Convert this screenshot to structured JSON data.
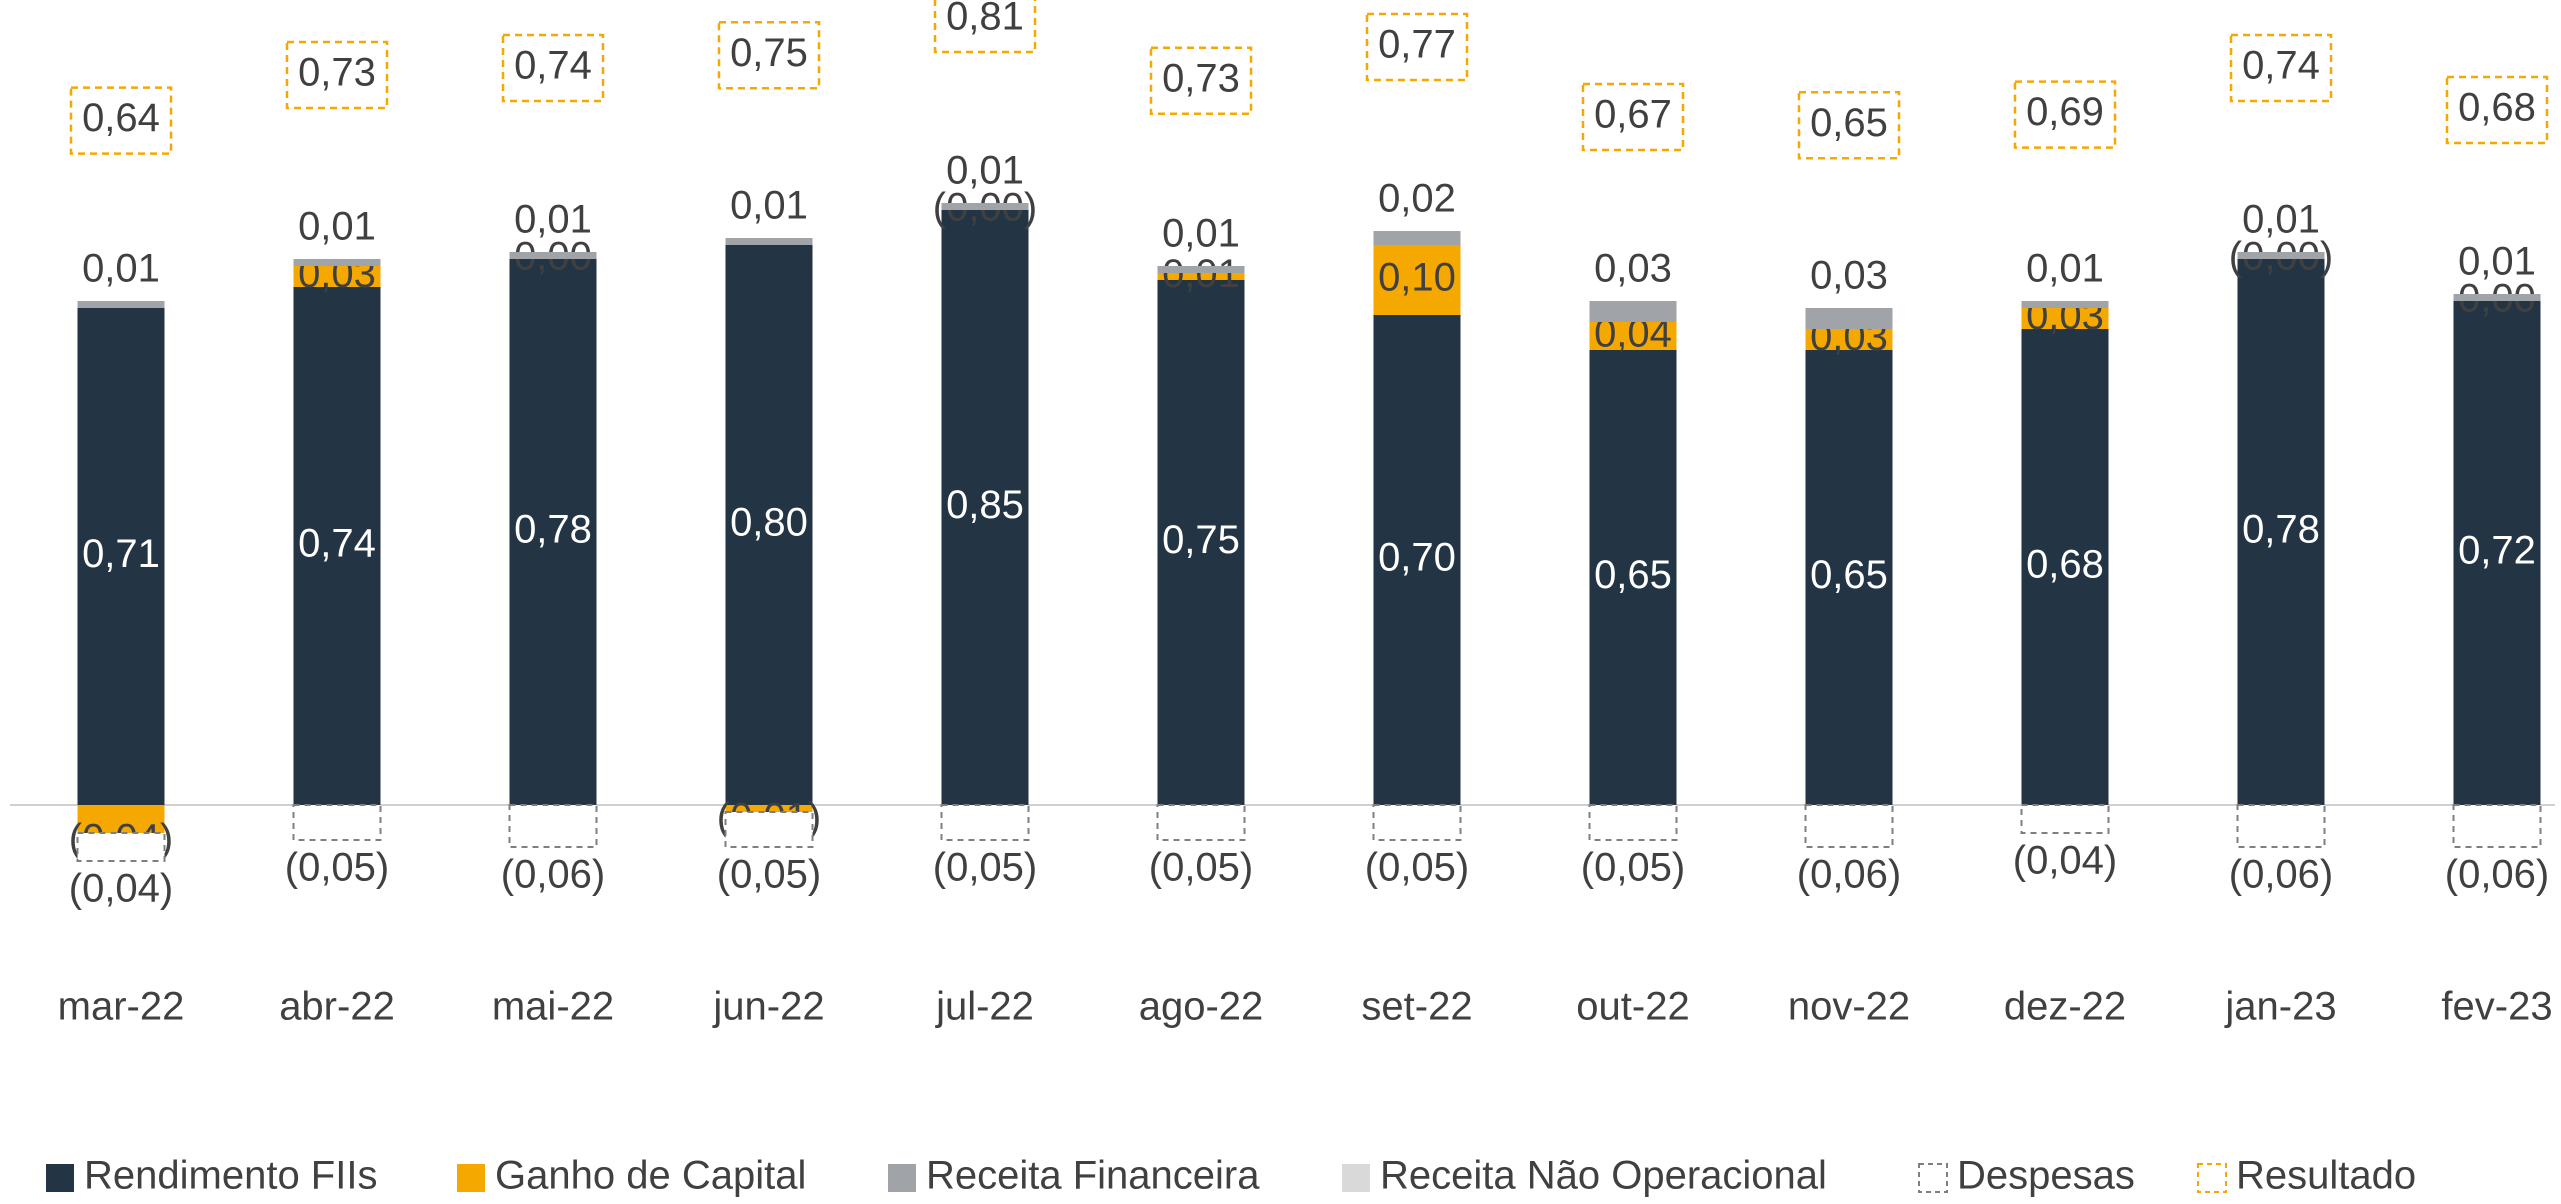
{
  "chart_data": {
    "type": "stacked_bar",
    "categories": [
      "mar-22",
      "abr-22",
      "mai-22",
      "jun-22",
      "jul-22",
      "ago-22",
      "set-22",
      "out-22",
      "nov-22",
      "dez-22",
      "jan-23",
      "fev-23"
    ],
    "ylim": [
      -0.15,
      1.15
    ],
    "series": [
      {
        "name": "Rendimento FIIs",
        "color": "#233545",
        "values": [
          0.71,
          0.74,
          0.78,
          0.8,
          0.85,
          0.75,
          0.7,
          0.65,
          0.65,
          0.68,
          0.78,
          0.72
        ],
        "value_labels": [
          "0,71",
          "0,74",
          "0,78",
          "0,80",
          "0,85",
          "0,75",
          "0,70",
          "0,65",
          "0,65",
          "0,68",
          "0,78",
          "0,72"
        ]
      },
      {
        "name": "Ganho de Capital",
        "color": "#f5a800",
        "values": [
          -0.04,
          0.03,
          0.0,
          -0.01,
          -0.0,
          0.01,
          0.1,
          0.04,
          0.03,
          0.03,
          -0.0,
          0.0
        ],
        "value_labels": [
          "(0,04)",
          "0,03",
          "0,00",
          "(0,01)",
          "(0,00)",
          "0,01",
          "0,10",
          "0,04",
          "0,03",
          "0,03",
          "(0,00)",
          "0,00"
        ]
      },
      {
        "name": "Receita Financeira",
        "color": "#a0a3a8",
        "values": [
          0.01,
          0.01,
          0.01,
          0.01,
          0.01,
          0.01,
          0.02,
          0.03,
          0.03,
          0.01,
          0.01,
          0.01
        ],
        "value_labels": [
          "0,01",
          "0,01",
          "0,01",
          "0,01",
          "0,01",
          "0,01",
          "0,02",
          "0,03",
          "0,03",
          "0,01",
          "0,01",
          "0,01"
        ]
      },
      {
        "name": "Receita Não Operacional",
        "color": "#d9d9d9",
        "values": [
          null,
          null,
          null,
          null,
          null,
          null,
          null,
          null,
          null,
          null,
          null,
          null
        ]
      },
      {
        "name": "Despesas",
        "color": "#7f7f7f",
        "dashed": true,
        "values": [
          -0.04,
          -0.05,
          -0.06,
          -0.05,
          -0.05,
          -0.05,
          -0.05,
          -0.05,
          -0.06,
          -0.04,
          -0.06,
          -0.06
        ],
        "value_labels": [
          "(0,04)",
          "(0,05)",
          "(0,06)",
          "(0,05)",
          "(0,05)",
          "(0,05)",
          "(0,05)",
          "(0,05)",
          "(0,06)",
          "(0,04)",
          "(0,06)",
          "(0,06)"
        ]
      },
      {
        "name": "Resultado",
        "color": "#f5a800",
        "dashed": true,
        "stacked": false,
        "values": [
          0.64,
          0.73,
          0.74,
          0.75,
          0.81,
          0.73,
          0.77,
          0.67,
          0.65,
          0.69,
          0.74,
          0.68
        ],
        "value_labels": [
          "0,64",
          "0,73",
          "0,74",
          "0,75",
          "0,81",
          "0,73",
          "0,77",
          "0,67",
          "0,65",
          "0,69",
          "0,74",
          "0,68"
        ]
      }
    ],
    "legend": "bottom"
  }
}
